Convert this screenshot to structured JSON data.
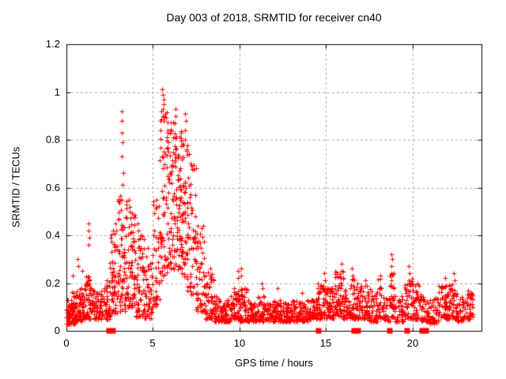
{
  "chart_data": {
    "type": "scatter",
    "title": "Day 003 of 2018, SRMTID for receiver cn40",
    "xlabel": "GPS time / hours",
    "ylabel": "SRMTID / TECUs",
    "xlim": [
      0,
      24
    ],
    "ylim": [
      0,
      1.2
    ],
    "xticks": [
      0,
      5,
      10,
      15,
      20
    ],
    "xtick_labels": [
      "0",
      "5",
      "10",
      "15",
      "20"
    ],
    "yticks": [
      0,
      0.2,
      0.4,
      0.6,
      0.8,
      1,
      1.2
    ],
    "ytick_labels": [
      "0",
      "0.2",
      "0.4",
      "0.6",
      "0.8",
      "1",
      "1.2"
    ],
    "grid": {
      "show": true,
      "style": "dashed",
      "color": "#a9a9a9"
    },
    "legend": "none",
    "background": "#ffffff",
    "border_color": "#000000",
    "marker": {
      "glyph": "plus",
      "color": "#ff0000",
      "size": 7
    },
    "flagged_marker": {
      "glyph": "filled-square",
      "color": "#ff0000",
      "size": 7,
      "y_value": 0
    },
    "flagged_times": [
      2.45,
      2.7,
      14.56,
      16.62,
      16.85,
      18.7,
      19.7,
      20.59,
      20.82
    ],
    "seed": 42,
    "series": [
      {
        "name": "SRMTID",
        "representation": "density-envelope",
        "bin_format": [
          "x_start_hours",
          "x_end_hours",
          "n_points",
          "y_low_TECUs",
          "y_high_TECUs",
          "low_bias_skew"
        ],
        "envelope_bins": [
          [
            0.0,
            0.5,
            70,
            0.03,
            0.13,
            1.8
          ],
          [
            0.3,
            0.55,
            15,
            0.08,
            0.22,
            1.5
          ],
          [
            0.5,
            1.0,
            65,
            0.04,
            0.18,
            1.8
          ],
          [
            1.0,
            1.5,
            60,
            0.05,
            0.24,
            1.7
          ],
          [
            1.5,
            2.0,
            55,
            0.05,
            0.17,
            1.8
          ],
          [
            2.0,
            2.5,
            55,
            0.05,
            0.22,
            1.7
          ],
          [
            2.5,
            3.0,
            65,
            0.07,
            0.42,
            1.7
          ],
          [
            3.0,
            3.5,
            75,
            0.08,
            0.58,
            1.5
          ],
          [
            3.5,
            4.0,
            70,
            0.1,
            0.5,
            1.6
          ],
          [
            4.0,
            4.5,
            60,
            0.06,
            0.4,
            1.7
          ],
          [
            4.5,
            5.0,
            55,
            0.05,
            0.35,
            1.6
          ],
          [
            5.0,
            5.4,
            45,
            0.1,
            0.55,
            1.5
          ],
          [
            5.4,
            5.8,
            55,
            0.2,
            0.95,
            1.2
          ],
          [
            5.8,
            6.2,
            60,
            0.25,
            0.88,
            1.1
          ],
          [
            6.2,
            6.6,
            65,
            0.25,
            0.85,
            1.1
          ],
          [
            6.6,
            7.0,
            65,
            0.22,
            0.85,
            1.2
          ],
          [
            7.0,
            7.5,
            60,
            0.15,
            0.7,
            1.4
          ],
          [
            7.5,
            8.0,
            55,
            0.08,
            0.45,
            1.6
          ],
          [
            8.0,
            8.5,
            55,
            0.05,
            0.25,
            1.8
          ],
          [
            8.5,
            9.0,
            50,
            0.04,
            0.15,
            1.8
          ],
          [
            9.0,
            9.5,
            50,
            0.04,
            0.13,
            1.8
          ],
          [
            9.5,
            10.0,
            55,
            0.05,
            0.18,
            1.7
          ],
          [
            10.0,
            10.5,
            55,
            0.04,
            0.18,
            1.7
          ],
          [
            10.5,
            11.0,
            50,
            0.04,
            0.12,
            1.8
          ],
          [
            11.0,
            11.5,
            50,
            0.04,
            0.15,
            1.8
          ],
          [
            11.5,
            12.0,
            50,
            0.04,
            0.12,
            1.8
          ],
          [
            12.0,
            12.5,
            50,
            0.04,
            0.14,
            1.8
          ],
          [
            12.5,
            13.0,
            50,
            0.04,
            0.12,
            1.8
          ],
          [
            13.0,
            13.5,
            50,
            0.04,
            0.13,
            1.8
          ],
          [
            13.5,
            14.0,
            50,
            0.04,
            0.13,
            1.8
          ],
          [
            14.0,
            14.5,
            50,
            0.05,
            0.14,
            1.8
          ],
          [
            14.5,
            15.0,
            55,
            0.05,
            0.2,
            1.6
          ],
          [
            15.0,
            15.5,
            55,
            0.05,
            0.18,
            1.6
          ],
          [
            15.5,
            16.0,
            55,
            0.06,
            0.25,
            1.5
          ],
          [
            16.0,
            16.5,
            50,
            0.05,
            0.2,
            1.6
          ],
          [
            16.5,
            17.0,
            50,
            0.05,
            0.22,
            1.6
          ],
          [
            17.0,
            17.5,
            50,
            0.05,
            0.2,
            1.6
          ],
          [
            17.5,
            18.0,
            45,
            0.04,
            0.18,
            1.7
          ],
          [
            18.0,
            18.4,
            30,
            0.05,
            0.22,
            1.6
          ],
          [
            18.4,
            18.7,
            20,
            0.04,
            0.14,
            1.8
          ],
          [
            18.7,
            19.0,
            35,
            0.05,
            0.28,
            1.5
          ],
          [
            19.0,
            19.5,
            40,
            0.04,
            0.15,
            1.8
          ],
          [
            19.5,
            20.0,
            45,
            0.05,
            0.22,
            1.6
          ],
          [
            20.0,
            20.5,
            50,
            0.05,
            0.2,
            1.6
          ],
          [
            20.5,
            21.0,
            40,
            0.04,
            0.15,
            1.8
          ],
          [
            21.0,
            21.5,
            40,
            0.03,
            0.14,
            1.8
          ],
          [
            21.5,
            22.0,
            50,
            0.05,
            0.19,
            1.6
          ],
          [
            22.0,
            22.5,
            50,
            0.05,
            0.2,
            1.6
          ],
          [
            22.5,
            23.0,
            45,
            0.04,
            0.16,
            1.7
          ],
          [
            23.0,
            23.5,
            40,
            0.05,
            0.17,
            1.6
          ]
        ],
        "peak_points": [
          [
            0.35,
            0.23
          ],
          [
            0.65,
            0.3
          ],
          [
            0.7,
            0.27
          ],
          [
            0.9,
            0.25
          ],
          [
            1.28,
            0.45
          ],
          [
            1.3,
            0.42
          ],
          [
            1.33,
            0.39
          ],
          [
            1.3,
            0.36
          ],
          [
            2.85,
            0.45
          ],
          [
            2.9,
            0.42
          ],
          [
            3.18,
            0.92
          ],
          [
            3.22,
            0.88
          ],
          [
            3.2,
            0.83
          ],
          [
            3.25,
            0.79
          ],
          [
            3.21,
            0.73
          ],
          [
            3.3,
            0.66
          ],
          [
            3.24,
            0.61
          ],
          [
            3.6,
            0.55
          ],
          [
            3.66,
            0.52
          ],
          [
            4.1,
            0.45
          ],
          [
            4.15,
            0.42
          ],
          [
            5.55,
            1.01
          ],
          [
            5.57,
            0.99
          ],
          [
            5.6,
            0.97
          ],
          [
            5.62,
            0.95
          ],
          [
            5.58,
            0.93
          ],
          [
            5.56,
            0.9
          ],
          [
            5.63,
            0.88
          ],
          [
            6.3,
            0.93
          ],
          [
            6.33,
            0.9
          ],
          [
            6.28,
            0.87
          ],
          [
            6.85,
            0.91
          ],
          [
            6.9,
            0.88
          ],
          [
            6.87,
            0.84
          ],
          [
            7.1,
            0.74
          ],
          [
            7.16,
            0.7
          ],
          [
            8.3,
            0.26
          ],
          [
            8.32,
            0.23
          ],
          [
            9.9,
            0.25
          ],
          [
            9.93,
            0.22
          ],
          [
            10.08,
            0.26
          ],
          [
            10.1,
            0.23
          ],
          [
            11.3,
            0.2
          ],
          [
            11.32,
            0.18
          ],
          [
            12.2,
            0.18
          ],
          [
            13.6,
            0.16
          ],
          [
            14.9,
            0.24
          ],
          [
            14.93,
            0.21
          ],
          [
            15.9,
            0.28
          ],
          [
            15.93,
            0.25
          ],
          [
            15.88,
            0.22
          ],
          [
            16.5,
            0.26
          ],
          [
            16.53,
            0.23
          ],
          [
            17.3,
            0.21
          ],
          [
            18.15,
            0.23
          ],
          [
            18.8,
            0.32
          ],
          [
            18.82,
            0.3
          ],
          [
            18.78,
            0.27
          ],
          [
            18.81,
            0.24
          ],
          [
            19.8,
            0.27
          ],
          [
            19.83,
            0.24
          ],
          [
            19.78,
            0.21
          ],
          [
            20.3,
            0.2
          ],
          [
            21.9,
            0.22
          ],
          [
            21.93,
            0.19
          ],
          [
            22.4,
            0.24
          ],
          [
            22.43,
            0.21
          ],
          [
            23.2,
            0.17
          ]
        ]
      }
    ]
  }
}
